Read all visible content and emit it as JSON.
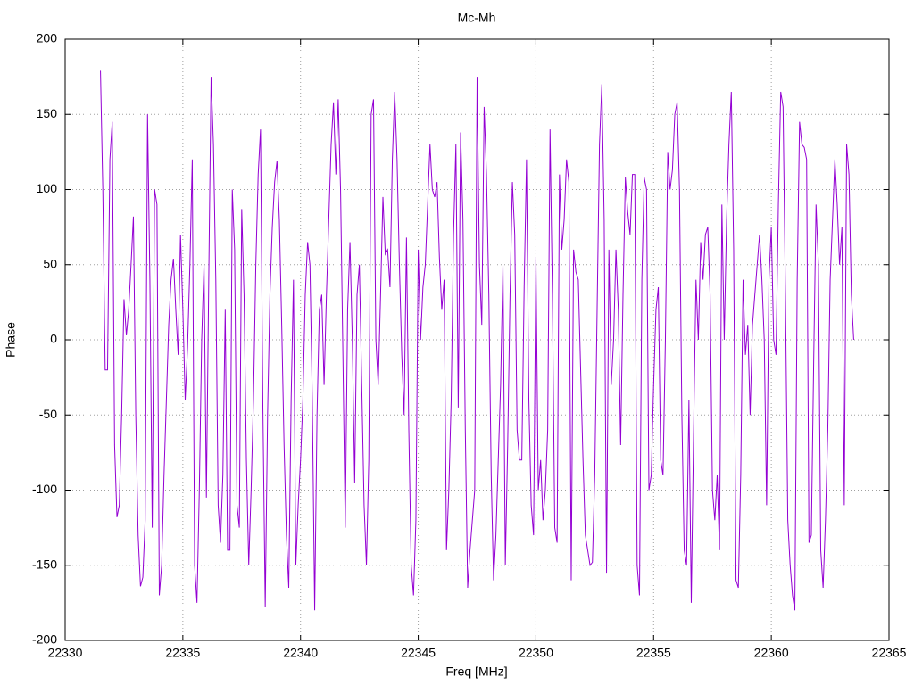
{
  "chart_data": {
    "type": "line",
    "title": "Mc-Mh",
    "x_label": "Freq [MHz]",
    "y_label": "Phase",
    "xlim": [
      22330,
      22365
    ],
    "xticks": [
      22330,
      22335,
      22340,
      22345,
      22350,
      22355,
      22360,
      22365
    ],
    "ylim": [
      -200,
      200
    ],
    "yticks": [
      -200,
      -150,
      -100,
      -50,
      0,
      50,
      100,
      150,
      200
    ],
    "grid": true,
    "x": [
      22331.5,
      22331.6,
      22331.7,
      22331.8,
      22331.9,
      22332.0,
      22332.1,
      22332.2,
      22332.3,
      22332.4,
      22332.5,
      22332.6,
      22332.7,
      22332.8,
      22332.9,
      22333.0,
      22333.1,
      22333.2,
      22333.3,
      22333.4,
      22333.5,
      22333.6,
      22333.7,
      22333.8,
      22333.9,
      22334.0,
      22334.1,
      22334.2,
      22334.3,
      22334.4,
      22334.5,
      22334.6,
      22334.7,
      22334.8,
      22334.9,
      22335.0,
      22335.1,
      22335.2,
      22335.3,
      22335.4,
      22335.5,
      22335.6,
      22335.7,
      22335.8,
      22335.9,
      22336.0,
      22336.1,
      22336.2,
      22336.3,
      22336.4,
      22336.5,
      22336.6,
      22336.7,
      22336.8,
      22336.9,
      22337.0,
      22337.1,
      22337.2,
      22337.3,
      22337.4,
      22337.5,
      22337.6,
      22337.7,
      22337.8,
      22337.9,
      22338.0,
      22338.1,
      22338.2,
      22338.3,
      22338.4,
      22338.5,
      22338.6,
      22338.7,
      22338.8,
      22338.9,
      22339.0,
      22339.1,
      22339.2,
      22339.3,
      22339.4,
      22339.5,
      22339.6,
      22339.7,
      22339.8,
      22339.9,
      22340.0,
      22340.1,
      22340.2,
      22340.3,
      22340.4,
      22340.5,
      22340.6,
      22340.7,
      22340.8,
      22340.9,
      22341.0,
      22341.1,
      22341.2,
      22341.3,
      22341.4,
      22341.5,
      22341.6,
      22341.7,
      22341.8,
      22341.9,
      22342.0,
      22342.1,
      22342.2,
      22342.3,
      22342.4,
      22342.5,
      22342.6,
      22342.7,
      22342.8,
      22342.9,
      22343.0,
      22343.1,
      22343.2,
      22343.3,
      22343.4,
      22343.5,
      22343.6,
      22343.7,
      22343.8,
      22343.9,
      22344.0,
      22344.1,
      22344.2,
      22344.3,
      22344.4,
      22344.5,
      22344.6,
      22344.7,
      22344.8,
      22344.9,
      22345.0,
      22345.1,
      22345.2,
      22345.3,
      22345.4,
      22345.5,
      22345.6,
      22345.7,
      22345.8,
      22345.9,
      22346.0,
      22346.1,
      22346.2,
      22346.3,
      22346.4,
      22346.5,
      22346.6,
      22346.7,
      22346.8,
      22346.9,
      22347.0,
      22347.1,
      22347.2,
      22347.3,
      22347.4,
      22347.5,
      22347.6,
      22347.7,
      22347.8,
      22347.9,
      22348.0,
      22348.1,
      22348.2,
      22348.3,
      22348.4,
      22348.5,
      22348.6,
      22348.7,
      22348.8,
      22348.9,
      22349.0,
      22349.1,
      22349.2,
      22349.3,
      22349.4,
      22349.5,
      22349.6,
      22349.7,
      22349.8,
      22349.9,
      22350.0,
      22350.1,
      22350.2,
      22350.3,
      22350.4,
      22350.5,
      22350.6,
      22350.7,
      22350.8,
      22350.9,
      22351.0,
      22351.1,
      22351.2,
      22351.3,
      22351.4,
      22351.5,
      22351.6,
      22351.7,
      22351.8,
      22351.9,
      22352.0,
      22352.1,
      22352.2,
      22352.3,
      22352.4,
      22352.5,
      22352.6,
      22352.7,
      22352.8,
      22352.9,
      22353.0,
      22353.1,
      22353.2,
      22353.3,
      22353.4,
      22353.5,
      22353.6,
      22353.7,
      22353.8,
      22353.9,
      22354.0,
      22354.1,
      22354.2,
      22354.3,
      22354.4,
      22354.5,
      22354.6,
      22354.7,
      22354.8,
      22354.9,
      22355.0,
      22355.1,
      22355.2,
      22355.3,
      22355.4,
      22355.5,
      22355.6,
      22355.7,
      22355.8,
      22355.9,
      22356.0,
      22356.1,
      22356.2,
      22356.3,
      22356.4,
      22356.5,
      22356.6,
      22356.7,
      22356.8,
      22356.9,
      22357.0,
      22357.1,
      22357.2,
      22357.3,
      22357.4,
      22357.5,
      22357.6,
      22357.7,
      22357.8,
      22357.9,
      22358.0,
      22358.1,
      22358.2,
      22358.3,
      22358.4,
      22358.5,
      22358.6,
      22358.7,
      22358.8,
      22358.9,
      22359.0,
      22359.1,
      22359.2,
      22359.3,
      22359.4,
      22359.5,
      22359.6,
      22359.7,
      22359.8,
      22359.9,
      22360.0,
      22360.1,
      22360.2,
      22360.3,
      22360.4,
      22360.5,
      22360.6,
      22360.7,
      22360.8,
      22360.9,
      22361.0,
      22361.1,
      22361.2,
      22361.3,
      22361.4,
      22361.5,
      22361.6,
      22361.7,
      22361.8,
      22361.9,
      22362.0,
      22362.1,
      22362.2,
      22362.3,
      22362.4,
      22362.5,
      22362.6,
      22362.7,
      22362.8,
      22362.9,
      22363.0,
      22363.1,
      22363.2,
      22363.3,
      22363.4,
      22363.5
    ],
    "series": [
      {
        "color": "#9400d3",
        "values": [
          179,
          100,
          -20,
          -20,
          120,
          145,
          -70,
          -118,
          -110,
          -50,
          27,
          3,
          20,
          50,
          82,
          -50,
          -130,
          -164,
          -158,
          -120,
          150,
          40,
          -125,
          100,
          90,
          -170,
          -150,
          -90,
          -40,
          10,
          40,
          54,
          20,
          -10,
          70,
          20,
          -40,
          -5,
          50,
          120,
          -150,
          -175,
          -100,
          0,
          50,
          -105,
          40,
          175,
          130,
          40,
          -110,
          -135,
          -90,
          20,
          -140,
          -140,
          100,
          60,
          -110,
          -125,
          87,
          30,
          -80,
          -150,
          -100,
          -40,
          50,
          110,
          140,
          -45,
          -178,
          -50,
          30,
          75,
          105,
          119,
          80,
          10,
          -70,
          -130,
          -165,
          -40,
          40,
          -150,
          -110,
          -80,
          -40,
          30,
          65,
          50,
          -40,
          -180,
          -50,
          20,
          30,
          -30,
          30,
          80,
          130,
          158,
          110,
          160,
          100,
          -10,
          -125,
          20,
          65,
          0,
          -95,
          30,
          50,
          -30,
          -110,
          -150,
          -80,
          150,
          160,
          0,
          -30,
          30,
          95,
          57,
          60,
          35,
          120,
          165,
          120,
          50,
          -10,
          -50,
          68,
          -60,
          -150,
          -170,
          -120,
          60,
          0,
          35,
          50,
          90,
          130,
          100,
          95,
          105,
          55,
          20,
          40,
          -140,
          -100,
          -40,
          70,
          130,
          -45,
          138,
          80,
          -60,
          -165,
          -140,
          -120,
          -100,
          175,
          50,
          10,
          155,
          110,
          30,
          -90,
          -160,
          -130,
          -80,
          -30,
          50,
          -150,
          -70,
          30,
          105,
          70,
          -60,
          -80,
          -80,
          35,
          120,
          -40,
          -110,
          -130,
          55,
          -100,
          -80,
          -120,
          -100,
          -60,
          140,
          30,
          -125,
          -135,
          110,
          60,
          80,
          120,
          105,
          -160,
          60,
          45,
          40,
          -20,
          -80,
          -130,
          -140,
          -150,
          -148,
          -90,
          20,
          130,
          170,
          80,
          -155,
          60,
          -30,
          0,
          60,
          20,
          -70,
          30,
          108,
          85,
          70,
          110,
          110,
          -150,
          -170,
          40,
          108,
          100,
          -100,
          -90,
          -30,
          20,
          35,
          -80,
          -90,
          0,
          125,
          100,
          113,
          150,
          158,
          100,
          -50,
          -140,
          -150,
          -40,
          -175,
          -60,
          40,
          0,
          65,
          40,
          70,
          75,
          30,
          -100,
          -120,
          -90,
          -140,
          90,
          0,
          80,
          130,
          165,
          60,
          -160,
          -165,
          -90,
          40,
          -10,
          10,
          -50,
          10,
          30,
          50,
          70,
          40,
          0,
          -110,
          40,
          75,
          0,
          -10,
          90,
          165,
          155,
          30,
          -120,
          -150,
          -170,
          -180,
          40,
          145,
          130,
          128,
          120,
          -135,
          -130,
          -15,
          90,
          50,
          -140,
          -165,
          -120,
          -60,
          40,
          80,
          120,
          90,
          50,
          75,
          -110,
          130,
          110,
          30,
          0
        ]
      }
    ]
  }
}
